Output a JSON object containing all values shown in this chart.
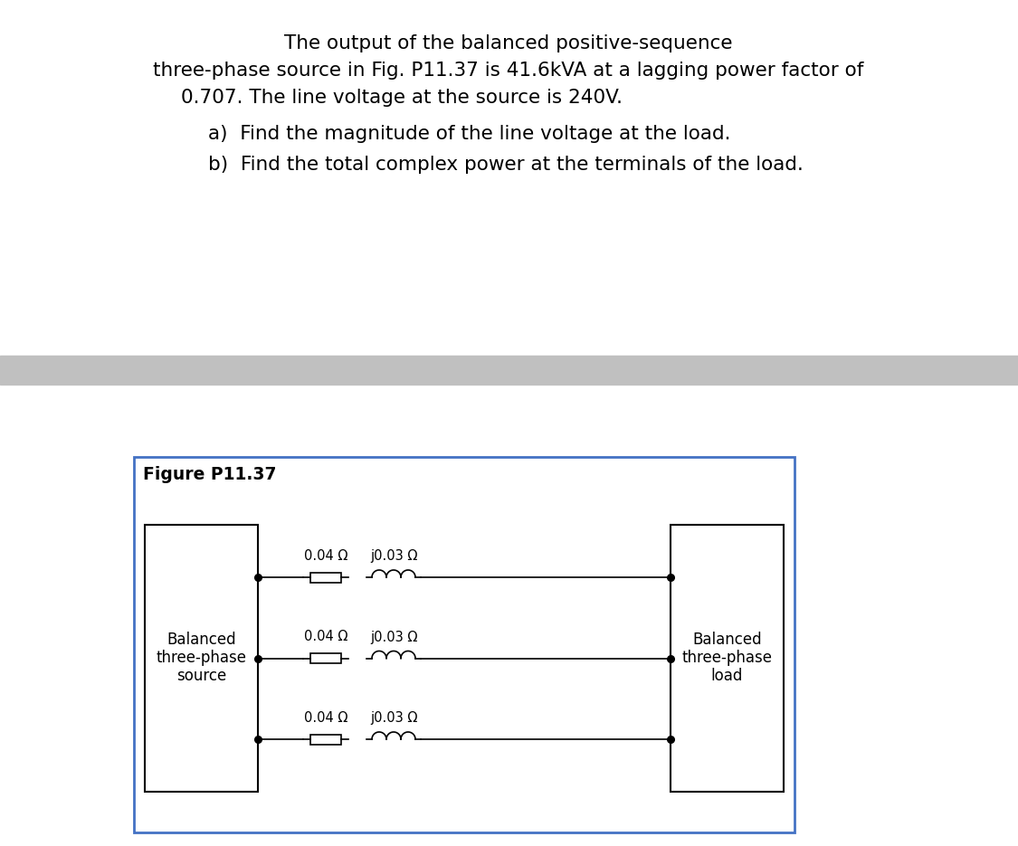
{
  "background_color": "#ffffff",
  "text_line1": "The output of the balanced positive-sequence",
  "text_line2": "three-phase source in Fig. P11.37 is 41.6kVA at a lagging power factor of",
  "text_line3": "0.707. The line voltage at the source is 240V.",
  "text_a": "a)  Find the magnitude of the line voltage at the load.",
  "text_b": "b)  Find the total complex power at the terminals of the load.",
  "figure_label": "Figure P11.37",
  "source_label_line1": "Balanced",
  "source_label_line2": "three-phase",
  "source_label_line3": "source",
  "load_label_line1": "Balanced",
  "load_label_line2": "three-phase",
  "load_label_line3": "load",
  "resistor_label": "0.04 Ω",
  "inductor_label": "j0.03 Ω",
  "separator_color": "#c0c0c0",
  "figure_border_color": "#4472c4",
  "font_size_main": 15.5,
  "font_size_ab": 15.5,
  "font_size_figure": 13.5,
  "font_size_circuit": 12,
  "font_size_component": 10.5
}
